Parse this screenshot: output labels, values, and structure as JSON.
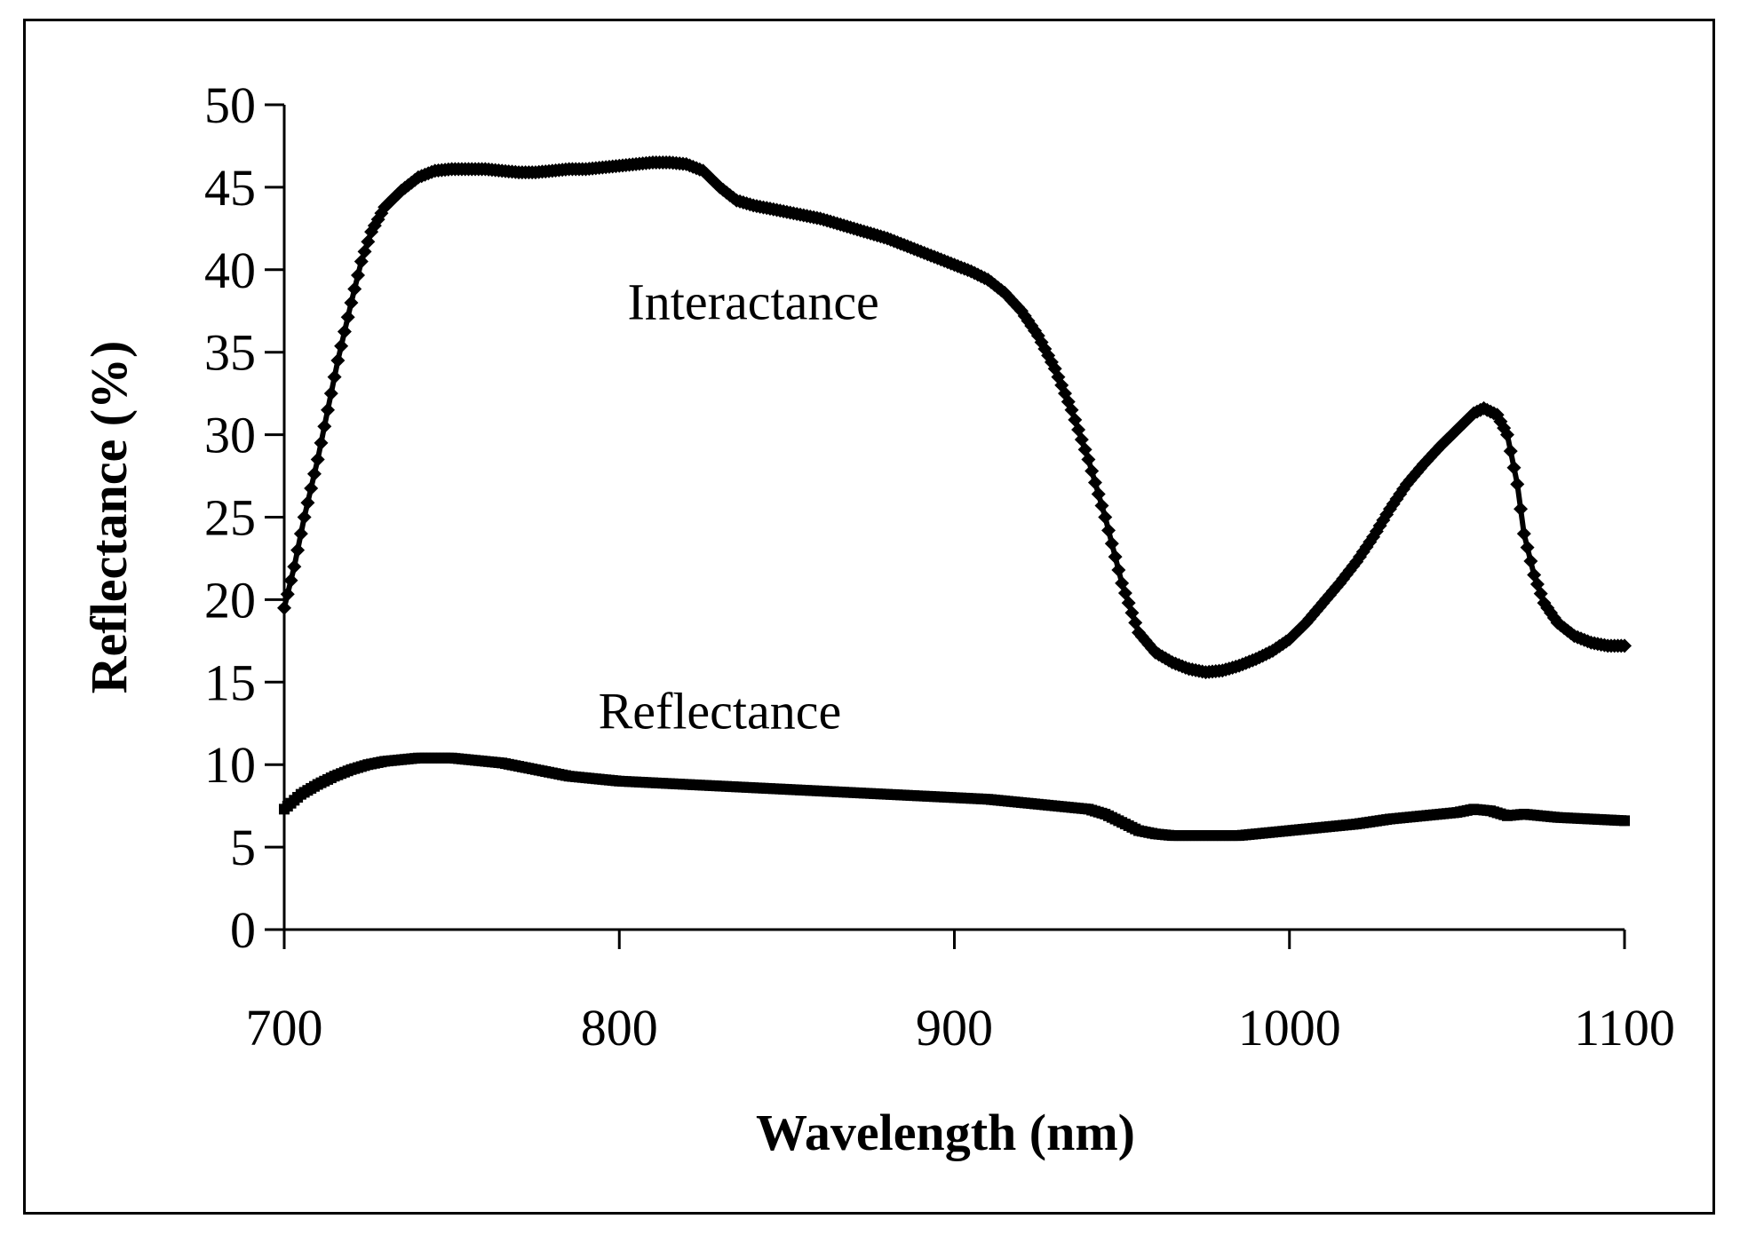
{
  "chart_data": {
    "type": "line",
    "title": "",
    "xlabel": "Wavelength (nm)",
    "ylabel": "Reflectance (%)",
    "xlim": [
      700,
      1100
    ],
    "ylim": [
      0,
      50
    ],
    "xticks": [
      700,
      800,
      900,
      1000,
      1100
    ],
    "yticks": [
      0,
      5,
      10,
      15,
      20,
      25,
      30,
      35,
      40,
      45,
      50
    ],
    "grid": false,
    "legend": "none",
    "series": [
      {
        "name": "Interactance",
        "marker": "diamond",
        "points": [
          [
            700,
            19.5
          ],
          [
            703,
            22
          ],
          [
            706,
            25
          ],
          [
            710,
            28.5
          ],
          [
            713,
            31.5
          ],
          [
            716,
            34.5
          ],
          [
            720,
            38
          ],
          [
            723,
            40.5
          ],
          [
            726,
            42.3
          ],
          [
            730,
            43.8
          ],
          [
            735,
            44.8
          ],
          [
            740,
            45.6
          ],
          [
            745,
            46
          ],
          [
            750,
            46.1
          ],
          [
            755,
            46.1
          ],
          [
            760,
            46.1
          ],
          [
            765,
            46
          ],
          [
            770,
            45.9
          ],
          [
            775,
            45.9
          ],
          [
            780,
            46
          ],
          [
            785,
            46.1
          ],
          [
            790,
            46.1
          ],
          [
            795,
            46.2
          ],
          [
            800,
            46.3
          ],
          [
            805,
            46.4
          ],
          [
            810,
            46.5
          ],
          [
            815,
            46.5
          ],
          [
            820,
            46.4
          ],
          [
            825,
            46
          ],
          [
            830,
            45
          ],
          [
            835,
            44.2
          ],
          [
            840,
            43.9
          ],
          [
            845,
            43.7
          ],
          [
            850,
            43.5
          ],
          [
            855,
            43.3
          ],
          [
            860,
            43.1
          ],
          [
            865,
            42.8
          ],
          [
            870,
            42.5
          ],
          [
            875,
            42.2
          ],
          [
            880,
            41.9
          ],
          [
            885,
            41.5
          ],
          [
            890,
            41.1
          ],
          [
            895,
            40.7
          ],
          [
            900,
            40.3
          ],
          [
            905,
            39.9
          ],
          [
            910,
            39.4
          ],
          [
            915,
            38.6
          ],
          [
            920,
            37.5
          ],
          [
            925,
            36
          ],
          [
            930,
            34
          ],
          [
            935,
            31.5
          ],
          [
            940,
            28.5
          ],
          [
            945,
            25
          ],
          [
            950,
            21
          ],
          [
            955,
            18
          ],
          [
            960,
            16.8
          ],
          [
            965,
            16.2
          ],
          [
            970,
            15.8
          ],
          [
            975,
            15.6
          ],
          [
            980,
            15.7
          ],
          [
            985,
            16
          ],
          [
            990,
            16.4
          ],
          [
            995,
            16.9
          ],
          [
            1000,
            17.6
          ],
          [
            1005,
            18.6
          ],
          [
            1010,
            19.8
          ],
          [
            1015,
            21
          ],
          [
            1020,
            22.3
          ],
          [
            1025,
            23.8
          ],
          [
            1030,
            25.5
          ],
          [
            1035,
            27
          ],
          [
            1040,
            28.2
          ],
          [
            1045,
            29.3
          ],
          [
            1050,
            30.3
          ],
          [
            1055,
            31.3
          ],
          [
            1058,
            31.6
          ],
          [
            1062,
            31.2
          ],
          [
            1065,
            30
          ],
          [
            1068,
            27
          ],
          [
            1070,
            24
          ],
          [
            1073,
            21.5
          ],
          [
            1076,
            19.8
          ],
          [
            1080,
            18.6
          ],
          [
            1085,
            17.8
          ],
          [
            1090,
            17.4
          ],
          [
            1095,
            17.2
          ],
          [
            1100,
            17.2
          ]
        ]
      },
      {
        "name": "Reflectance",
        "marker": "square",
        "points": [
          [
            700,
            7.3
          ],
          [
            705,
            8.2
          ],
          [
            710,
            8.8
          ],
          [
            715,
            9.3
          ],
          [
            720,
            9.7
          ],
          [
            725,
            10
          ],
          [
            730,
            10.2
          ],
          [
            735,
            10.3
          ],
          [
            740,
            10.4
          ],
          [
            745,
            10.4
          ],
          [
            750,
            10.4
          ],
          [
            755,
            10.3
          ],
          [
            760,
            10.2
          ],
          [
            765,
            10.1
          ],
          [
            770,
            9.9
          ],
          [
            775,
            9.7
          ],
          [
            780,
            9.5
          ],
          [
            785,
            9.3
          ],
          [
            790,
            9.2
          ],
          [
            795,
            9.1
          ],
          [
            800,
            9
          ],
          [
            810,
            8.9
          ],
          [
            820,
            8.8
          ],
          [
            830,
            8.7
          ],
          [
            840,
            8.6
          ],
          [
            850,
            8.5
          ],
          [
            860,
            8.4
          ],
          [
            870,
            8.3
          ],
          [
            880,
            8.2
          ],
          [
            890,
            8.1
          ],
          [
            900,
            8
          ],
          [
            910,
            7.9
          ],
          [
            920,
            7.7
          ],
          [
            930,
            7.5
          ],
          [
            940,
            7.3
          ],
          [
            945,
            7
          ],
          [
            950,
            6.5
          ],
          [
            955,
            6
          ],
          [
            960,
            5.8
          ],
          [
            965,
            5.7
          ],
          [
            970,
            5.7
          ],
          [
            975,
            5.7
          ],
          [
            980,
            5.7
          ],
          [
            985,
            5.7
          ],
          [
            990,
            5.8
          ],
          [
            995,
            5.9
          ],
          [
            1000,
            6
          ],
          [
            1010,
            6.2
          ],
          [
            1020,
            6.4
          ],
          [
            1030,
            6.7
          ],
          [
            1040,
            6.9
          ],
          [
            1050,
            7.1
          ],
          [
            1055,
            7.3
          ],
          [
            1060,
            7.2
          ],
          [
            1065,
            6.9
          ],
          [
            1070,
            7
          ],
          [
            1075,
            6.9
          ],
          [
            1080,
            6.8
          ],
          [
            1090,
            6.7
          ],
          [
            1100,
            6.6
          ]
        ]
      }
    ],
    "annotations": [
      {
        "text": "Interactance",
        "series": "Interactance",
        "at_x": 840,
        "at_y": 37
      },
      {
        "text": "Reflectance",
        "series": "Reflectance",
        "at_x": 830,
        "at_y": 12.2
      }
    ]
  }
}
